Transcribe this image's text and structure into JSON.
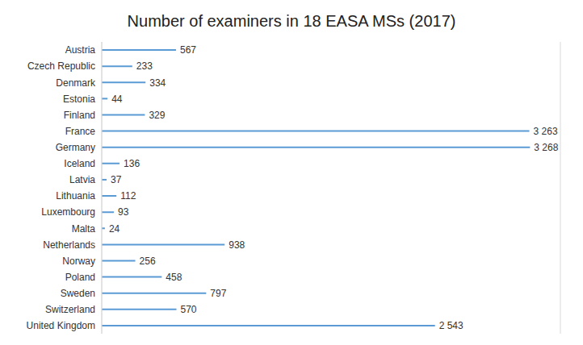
{
  "chart_data": {
    "type": "bar",
    "title": "Number of examiners in 18 EASA MSs (2017)",
    "orientation": "horizontal",
    "categories": [
      "Austria",
      "Czech Republic",
      "Denmark",
      "Estonia",
      "Finland",
      "France",
      "Germany",
      "Iceland",
      "Latvia",
      "Lithuania",
      "Luxembourg",
      "Malta",
      "Netherlands",
      "Norway",
      "Poland",
      "Sweden",
      "Switzerland",
      "United Kingdom"
    ],
    "values": [
      567,
      233,
      334,
      44,
      329,
      3263,
      3268,
      136,
      37,
      112,
      93,
      24,
      938,
      256,
      458,
      797,
      570,
      2543
    ],
    "value_labels": [
      "567",
      "233",
      "334",
      "44",
      "329",
      "3 263",
      "3 268",
      "136",
      "37",
      "112",
      "93",
      "24",
      "938",
      "256",
      "458",
      "797",
      "570",
      "2 543"
    ],
    "color": "#5b9bd5",
    "xlim": [
      0,
      3500
    ],
    "xticks": [
      0,
      500,
      1000,
      1500,
      2000,
      2500,
      3000,
      3500
    ],
    "grid": true,
    "data_labels": true,
    "tick_labels": "y"
  }
}
